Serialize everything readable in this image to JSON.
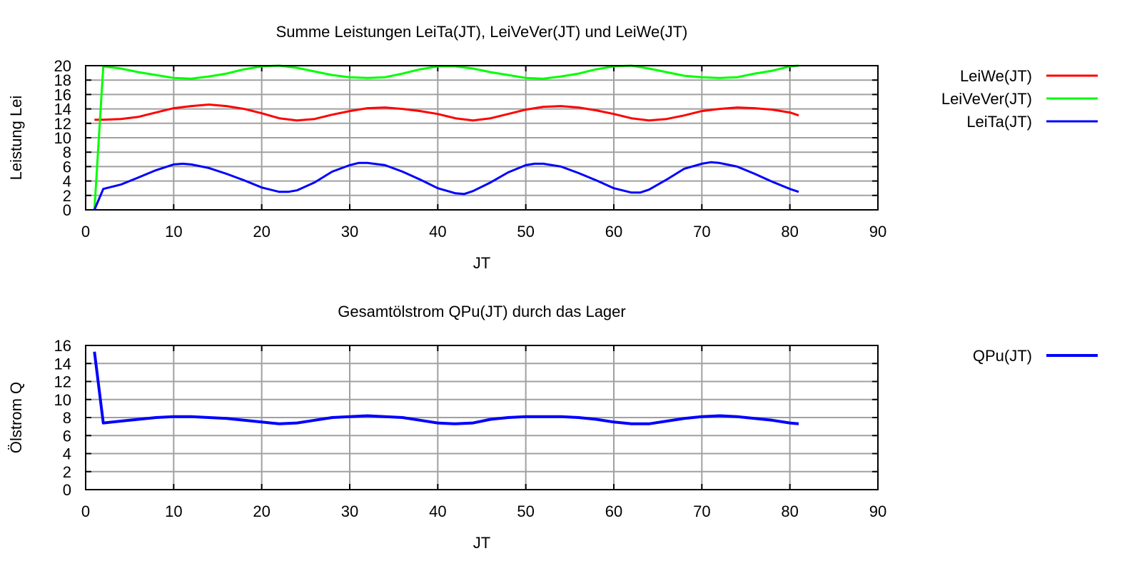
{
  "chart_data": [
    {
      "type": "line",
      "title": "Summe Leistungen LeiTa(JT), LeiVeVer(JT) und LeiWe(JT)",
      "xlabel": "JT",
      "ylabel": "Leistung Lei",
      "xlim": [
        0,
        90
      ],
      "ylim": [
        0,
        20
      ],
      "xticks": [
        0,
        10,
        20,
        30,
        40,
        50,
        60,
        70,
        80,
        90
      ],
      "yticks": [
        0,
        2,
        4,
        6,
        8,
        10,
        12,
        14,
        16,
        18,
        20
      ],
      "grid": true,
      "legend_position": "right",
      "series": [
        {
          "name": "LeiWe(JT)",
          "color": "#ff0000",
          "x": [
            1,
            2,
            4,
            6,
            8,
            10,
            12,
            14,
            16,
            18,
            20,
            22,
            24,
            26,
            28,
            30,
            32,
            34,
            36,
            38,
            40,
            42,
            44,
            46,
            48,
            50,
            52,
            54,
            56,
            58,
            60,
            62,
            64,
            66,
            68,
            70,
            72,
            74,
            76,
            78,
            80,
            81
          ],
          "y": [
            12.5,
            12.5,
            12.6,
            12.9,
            13.5,
            14.1,
            14.4,
            14.6,
            14.4,
            14.0,
            13.4,
            12.7,
            12.4,
            12.6,
            13.2,
            13.7,
            14.1,
            14.2,
            14.0,
            13.7,
            13.3,
            12.7,
            12.4,
            12.7,
            13.3,
            13.9,
            14.3,
            14.4,
            14.2,
            13.8,
            13.3,
            12.7,
            12.4,
            12.6,
            13.1,
            13.7,
            14.0,
            14.2,
            14.1,
            13.9,
            13.5,
            13.1
          ]
        },
        {
          "name": "LeiVeVer(JT)",
          "color": "#00ff00",
          "x": [
            1,
            2,
            4,
            6,
            8,
            10,
            12,
            14,
            16,
            18,
            20,
            22,
            24,
            26,
            28,
            30,
            32,
            34,
            36,
            38,
            40,
            42,
            44,
            46,
            48,
            50,
            52,
            54,
            56,
            58,
            60,
            62,
            64,
            66,
            68,
            70,
            72,
            74,
            76,
            78,
            80,
            81
          ],
          "y": [
            0,
            19.9,
            19.6,
            19.1,
            18.7,
            18.3,
            18.2,
            18.5,
            18.9,
            19.5,
            19.9,
            20.0,
            19.7,
            19.2,
            18.7,
            18.4,
            18.3,
            18.4,
            18.9,
            19.5,
            19.9,
            19.9,
            19.6,
            19.1,
            18.7,
            18.3,
            18.2,
            18.5,
            18.9,
            19.5,
            19.9,
            20.0,
            19.6,
            19.1,
            18.6,
            18.4,
            18.3,
            18.4,
            18.9,
            19.3,
            19.9,
            20.0
          ]
        },
        {
          "name": "LeiTa(JT)",
          "color": "#0000ff",
          "x": [
            1,
            2,
            4,
            6,
            8,
            10,
            11,
            12,
            14,
            16,
            18,
            20,
            22,
            23,
            24,
            26,
            28,
            30,
            31,
            32,
            34,
            36,
            38,
            40,
            42,
            43,
            44,
            46,
            48,
            50,
            51,
            52,
            54,
            56,
            58,
            60,
            62,
            63,
            64,
            66,
            68,
            70,
            71,
            72,
            74,
            76,
            78,
            80,
            81
          ],
          "y": [
            0,
            2.9,
            3.5,
            4.5,
            5.5,
            6.3,
            6.4,
            6.3,
            5.8,
            5.0,
            4.1,
            3.1,
            2.5,
            2.5,
            2.7,
            3.8,
            5.3,
            6.2,
            6.5,
            6.5,
            6.2,
            5.3,
            4.2,
            3.0,
            2.3,
            2.2,
            2.6,
            3.8,
            5.2,
            6.2,
            6.4,
            6.4,
            6.0,
            5.1,
            4.1,
            3.0,
            2.4,
            2.4,
            2.8,
            4.2,
            5.7,
            6.4,
            6.6,
            6.5,
            6.0,
            5.0,
            3.9,
            2.9,
            2.5
          ]
        }
      ]
    },
    {
      "type": "line",
      "title": "Gesamtölstrom QPu(JT) durch das Lager",
      "xlabel": "JT",
      "ylabel": "Ölstrom Q",
      "xlim": [
        0,
        90
      ],
      "ylim": [
        0,
        16
      ],
      "xticks": [
        0,
        10,
        20,
        30,
        40,
        50,
        60,
        70,
        80,
        90
      ],
      "yticks": [
        0,
        2,
        4,
        6,
        8,
        10,
        12,
        14,
        16
      ],
      "grid": true,
      "legend_position": "right",
      "series": [
        {
          "name": "QPu(JT)",
          "color": "#0000ff",
          "x": [
            1,
            2,
            4,
            6,
            8,
            10,
            12,
            14,
            16,
            18,
            20,
            22,
            24,
            26,
            28,
            30,
            32,
            34,
            36,
            38,
            40,
            42,
            44,
            46,
            48,
            50,
            52,
            54,
            56,
            58,
            60,
            62,
            64,
            66,
            68,
            70,
            72,
            74,
            76,
            78,
            80,
            81
          ],
          "y": [
            15.3,
            7.4,
            7.6,
            7.8,
            8.0,
            8.1,
            8.1,
            8.0,
            7.9,
            7.7,
            7.5,
            7.3,
            7.4,
            7.7,
            8.0,
            8.1,
            8.2,
            8.1,
            8.0,
            7.7,
            7.4,
            7.3,
            7.4,
            7.8,
            8.0,
            8.1,
            8.1,
            8.1,
            8.0,
            7.8,
            7.5,
            7.3,
            7.3,
            7.6,
            7.9,
            8.1,
            8.2,
            8.1,
            7.9,
            7.7,
            7.4,
            7.3
          ]
        }
      ]
    }
  ]
}
